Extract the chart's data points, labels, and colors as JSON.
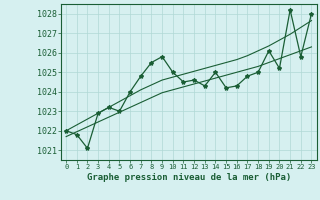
{
  "title": "Graphe pression niveau de la mer (hPa)",
  "bg_color": "#d6f0f0",
  "grid_color": "#b0d8d5",
  "line_color": "#1a5e35",
  "x_labels": [
    "0",
    "1",
    "2",
    "3",
    "4",
    "5",
    "6",
    "7",
    "8",
    "9",
    "10",
    "11",
    "12",
    "13",
    "14",
    "15",
    "16",
    "17",
    "18",
    "19",
    "20",
    "21",
    "22",
    "23"
  ],
  "ylim": [
    1020.5,
    1028.5
  ],
  "yticks": [
    1021,
    1022,
    1023,
    1024,
    1025,
    1026,
    1027,
    1028
  ],
  "main_data": [
    1022.0,
    1021.8,
    1021.1,
    1022.9,
    1023.2,
    1023.0,
    1024.0,
    1024.8,
    1025.5,
    1025.8,
    1025.0,
    1024.5,
    1024.6,
    1024.3,
    1025.0,
    1024.2,
    1024.3,
    1024.8,
    1025.0,
    1026.1,
    1025.2,
    1028.2,
    1025.8,
    1028.0
  ],
  "channel_low": [
    1021.7,
    1021.95,
    1022.2,
    1022.45,
    1022.7,
    1022.95,
    1023.2,
    1023.45,
    1023.7,
    1023.95,
    1024.1,
    1024.25,
    1024.4,
    1024.55,
    1024.7,
    1024.85,
    1025.0,
    1025.15,
    1025.3,
    1025.5,
    1025.7,
    1025.9,
    1026.1,
    1026.3
  ],
  "channel_high": [
    1022.0,
    1022.3,
    1022.6,
    1022.9,
    1023.2,
    1023.5,
    1023.8,
    1024.1,
    1024.35,
    1024.6,
    1024.75,
    1024.9,
    1025.05,
    1025.2,
    1025.35,
    1025.5,
    1025.65,
    1025.85,
    1026.1,
    1026.35,
    1026.65,
    1026.95,
    1027.3,
    1027.65
  ]
}
